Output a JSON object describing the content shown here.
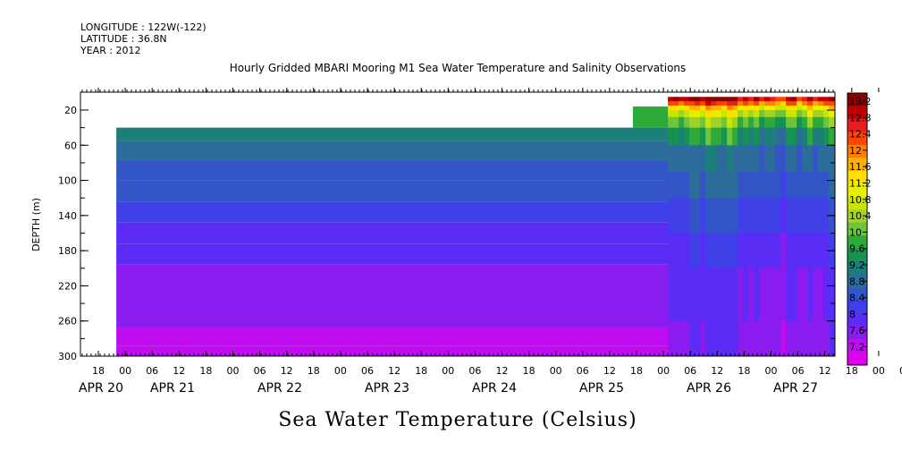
{
  "header": {
    "longitude": "LONGITUDE : 122W(-122)",
    "latitude": "LATITUDE : 36.8N",
    "year": "YEAR : 2012"
  },
  "chart_data": {
    "type": "heatmap",
    "title": "Hourly Gridded MBARI Mooring M1 Sea Water Temperature and Salinity Observations",
    "caption": "Sea Water Temperature (Celsius)",
    "ylabel": "DEPTH (m)",
    "xlabel": "",
    "y_reversed": true,
    "ylim": [
      300,
      0
    ],
    "y_ticks": [
      20,
      60,
      100,
      140,
      180,
      220,
      260,
      300
    ],
    "x_hour_ticks": [
      "18",
      "00",
      "06",
      "12",
      "18",
      "00",
      "06",
      "12",
      "18",
      "00",
      "06",
      "12",
      "18",
      "00",
      "06",
      "12",
      "18",
      "00",
      "06",
      "12",
      "18",
      "00",
      "06",
      "12",
      "18",
      "00",
      "06",
      "12",
      "18",
      "00",
      "06",
      "12"
    ],
    "x_date_labels": [
      "APR 20",
      "APR 21",
      "APR 22",
      "APR 23",
      "APR 24",
      "APR 25",
      "APR 26",
      "APR 27"
    ],
    "colorbar": {
      "levels": [
        "13.2",
        "12.8",
        "12.4",
        "12",
        "11.6",
        "11.2",
        "10.8",
        "10.4",
        "10",
        "9.6",
        "9.2",
        "8.8",
        "8.4",
        "8",
        "7.6",
        "7.2"
      ],
      "colors": [
        "#8b0000",
        "#c00000",
        "#e81e1e",
        "#ff4500",
        "#ff7f00",
        "#ffb000",
        "#ffe000",
        "#e8f000",
        "#c8e600",
        "#a0d22a",
        "#6ec43a",
        "#2eaa3a",
        "#159350",
        "#1c7f7a",
        "#2b6c9a",
        "#3355c8",
        "#3f40e8",
        "#5b2cf5",
        "#8a1cf0",
        "#c00cf0",
        "#e000f0"
      ]
    },
    "depth_bands": [
      {
        "top": 40,
        "bottom": 55,
        "value": 9.4
      },
      {
        "top": 55,
        "bottom": 78,
        "value": 9.0
      },
      {
        "top": 78,
        "bottom": 100,
        "value": 8.8
      },
      {
        "top": 100,
        "bottom": 124,
        "value": 8.6
      },
      {
        "top": 124,
        "bottom": 148,
        "value": 8.4
      },
      {
        "top": 148,
        "bottom": 172,
        "value": 8.2
      },
      {
        "top": 172,
        "bottom": 196,
        "value": 8.0
      },
      {
        "top": 196,
        "bottom": 268,
        "value": 7.8
      },
      {
        "top": 268,
        "bottom": 288,
        "value": 7.6
      },
      {
        "top": 288,
        "bottom": 300,
        "value": 7.4
      }
    ],
    "surface_profile": [
      {
        "depth": 5,
        "value": 13.0
      },
      {
        "depth": 10,
        "value": 12.2
      },
      {
        "depth": 15,
        "value": 11.4
      },
      {
        "depth": 20,
        "value": 10.8
      },
      {
        "depth": 28,
        "value": 10.2
      },
      {
        "depth": 40,
        "value": 9.6
      },
      {
        "depth": 60,
        "value": 9.0
      },
      {
        "depth": 90,
        "value": 8.8
      },
      {
        "depth": 120,
        "value": 8.5
      },
      {
        "depth": 160,
        "value": 8.2
      },
      {
        "depth": 200,
        "value": 8.0
      },
      {
        "depth": 260,
        "value": 7.9
      },
      {
        "depth": 300,
        "value": 7.7
      }
    ]
  }
}
